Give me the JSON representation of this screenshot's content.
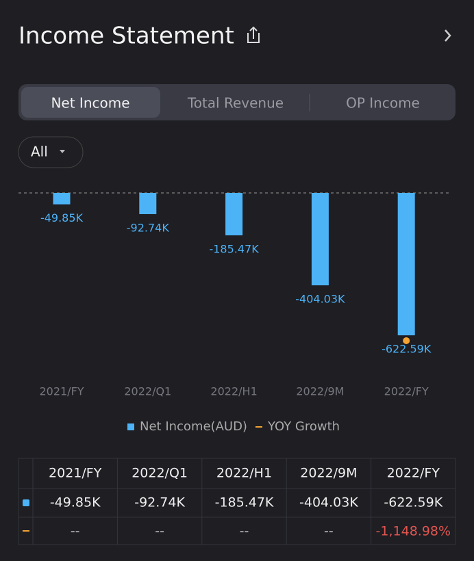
{
  "header": {
    "title": "Income Statement"
  },
  "tabs": [
    "Net Income",
    "Total Revenue",
    "OP Income"
  ],
  "filter": "All",
  "chart_data": {
    "type": "bar",
    "categories": [
      "2021/FY",
      "2022/Q1",
      "2022/H1",
      "2022/9M",
      "2022/FY"
    ],
    "ylim": [
      -700,
      0
    ],
    "y2lim": [
      -1245,
      0
    ],
    "series": [
      {
        "name": "Net Income(AUD)",
        "color": "#4cb3f7",
        "values": [
          -49.85,
          -92.74,
          -185.47,
          -404.03,
          -622.59
        ],
        "value_labels": [
          "-49.85K",
          "-92.74K",
          "-185.47K",
          "-404.03K",
          "-622.59K"
        ]
      },
      {
        "name": "YOY Growth",
        "color": "#f5a332",
        "axis": "y2",
        "values": [
          null,
          null,
          null,
          null,
          -1148.98
        ],
        "value_labels": [
          "--",
          "--",
          "--",
          "--",
          "-1,148.98%"
        ]
      }
    ]
  }
}
